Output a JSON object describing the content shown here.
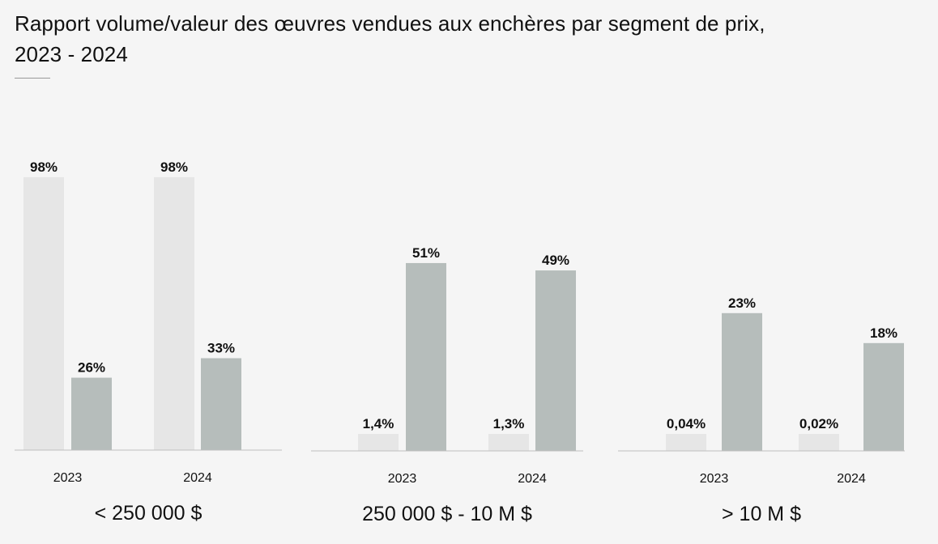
{
  "title_line1": "Rapport volume/valeur des œuvres vendues aux enchères par segment de prix,",
  "title_line2": "2023 - 2024",
  "colors": {
    "volume": "#e6e6e6",
    "valeur": "#b6bdbb",
    "axis": "#bfbfbf",
    "background": "#f5f5f5"
  },
  "chart_data": {
    "type": "bar",
    "unit": "%",
    "grid": false,
    "legend": "none",
    "groups": [
      {
        "segment": "< 250 000 $",
        "ylim": [
          0,
          100
        ],
        "years": [
          {
            "year": "2023",
            "volume": 98,
            "volume_label": "98%",
            "valeur": 26,
            "valeur_label": "26%"
          },
          {
            "year": "2024",
            "volume": 98,
            "volume_label": "98%",
            "valeur": 33,
            "valeur_label": "33%"
          }
        ]
      },
      {
        "segment": "250 000 $ - 10 M $",
        "ylim": [
          0,
          100
        ],
        "years": [
          {
            "year": "2023",
            "volume": 1.4,
            "volume_label": "1,4%",
            "valeur": 51,
            "valeur_label": "51%"
          },
          {
            "year": "2024",
            "volume": 1.3,
            "volume_label": "1,3%",
            "valeur": 49,
            "valeur_label": "49%"
          }
        ]
      },
      {
        "segment": "> 10 M $",
        "ylim": [
          0,
          100
        ],
        "years": [
          {
            "year": "2023",
            "volume": 0.04,
            "volume_label": "0,04%",
            "valeur": 23,
            "valeur_label": "23%"
          },
          {
            "year": "2024",
            "volume": 0.02,
            "volume_label": "0,02%",
            "valeur": 18,
            "valeur_label": "18%"
          }
        ]
      }
    ]
  }
}
